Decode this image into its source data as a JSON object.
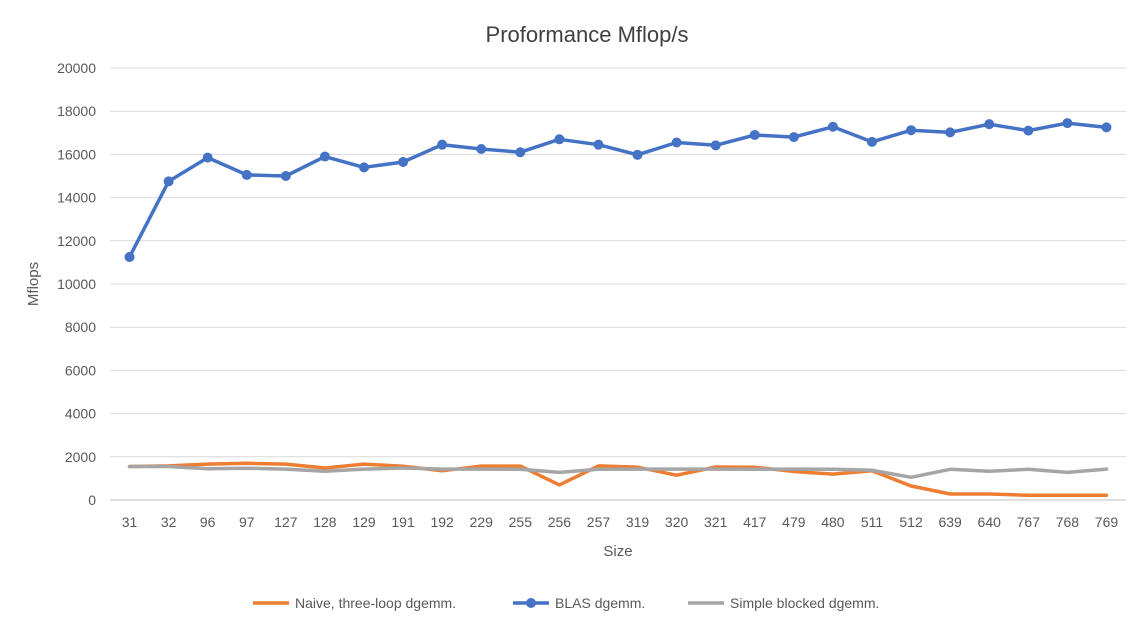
{
  "chart_data": {
    "type": "line",
    "title": "Proformance Mflop/s",
    "xlabel": "Size",
    "ylabel": "Mflops",
    "ylim": [
      0,
      20000
    ],
    "yticks": [
      0,
      2000,
      4000,
      6000,
      8000,
      10000,
      12000,
      14000,
      16000,
      18000,
      20000
    ],
    "grid": "horizontal",
    "legend_position": "bottom",
    "categories": [
      "31",
      "32",
      "96",
      "97",
      "127",
      "128",
      "129",
      "191",
      "192",
      "229",
      "255",
      "256",
      "257",
      "319",
      "320",
      "321",
      "417",
      "479",
      "480",
      "511",
      "512",
      "639",
      "640",
      "767",
      "768",
      "769"
    ],
    "series": [
      {
        "name": "Naive, three-loop dgemm.",
        "color": "#ed7d31",
        "markers": false,
        "values": [
          1550,
          1580,
          1660,
          1700,
          1660,
          1480,
          1660,
          1560,
          1350,
          1570,
          1570,
          700,
          1580,
          1520,
          1150,
          1530,
          1520,
          1320,
          1200,
          1350,
          650,
          280,
          280,
          220,
          220,
          220
        ]
      },
      {
        "name": "BLAS dgemm.",
        "color": "#4472c4",
        "markers": true,
        "values": [
          11250,
          14750,
          15850,
          15050,
          15000,
          15900,
          15400,
          15650,
          16450,
          16250,
          16100,
          16700,
          16450,
          15980,
          16550,
          16420,
          16900,
          16800,
          17280,
          16580,
          17120,
          17020,
          17400,
          17100,
          17450,
          17250
        ]
      },
      {
        "name": "Simple blocked dgemm.",
        "color": "#a5a5a5",
        "markers": false,
        "values": [
          1550,
          1550,
          1450,
          1470,
          1430,
          1330,
          1430,
          1480,
          1430,
          1430,
          1420,
          1280,
          1420,
          1430,
          1430,
          1430,
          1420,
          1430,
          1420,
          1380,
          1050,
          1420,
          1330,
          1420,
          1280,
          1430
        ]
      }
    ]
  }
}
